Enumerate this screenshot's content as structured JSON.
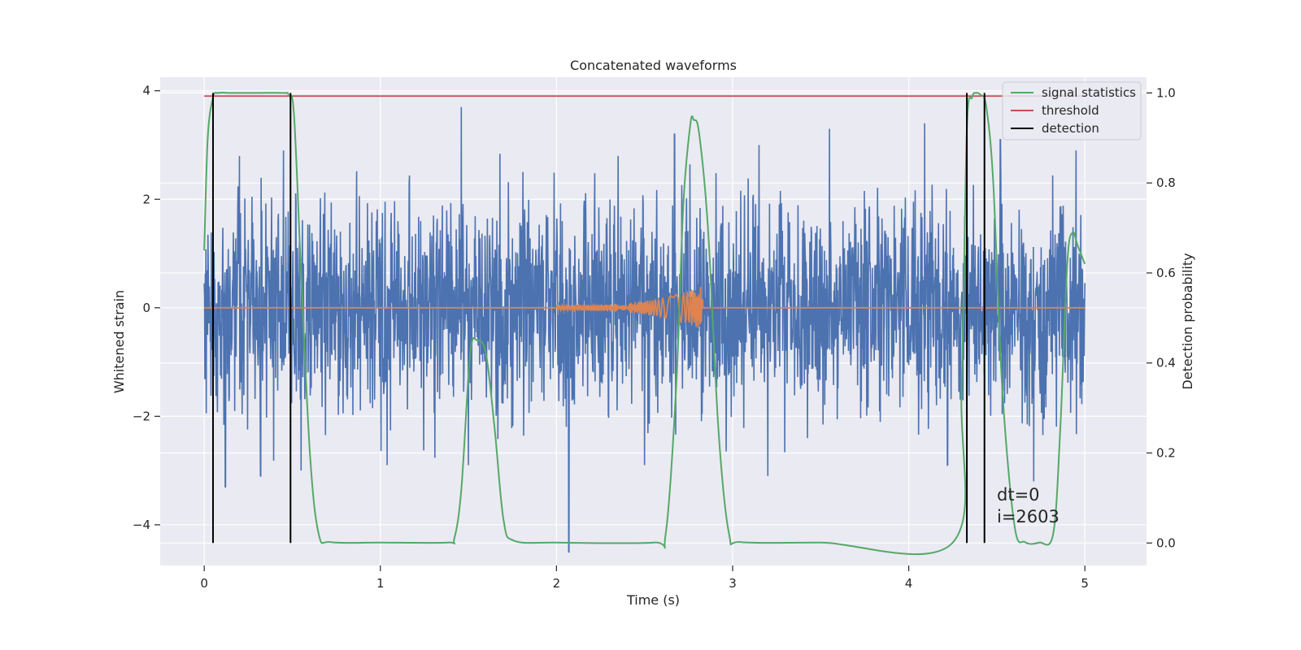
{
  "chart_data": {
    "type": "line",
    "title": "Concatenated waveforms",
    "xlabel": "Time (s)",
    "ylabel": "Whitened strain",
    "ylabel_right": "Detection probability",
    "xlim": [
      -0.25,
      5.35
    ],
    "ylim": [
      -4.75,
      4.25
    ],
    "ylim_right": [
      -0.05,
      1.035
    ],
    "x_ticks": [
      0,
      1,
      2,
      3,
      4,
      5
    ],
    "x_tick_labels": [
      "0",
      "1",
      "2",
      "3",
      "4",
      "5"
    ],
    "y_ticks": [
      -4,
      -2,
      0,
      2,
      4
    ],
    "y_tick_labels": [
      "−4",
      "−2",
      "0",
      "2",
      "4"
    ],
    "y_right_ticks": [
      0.0,
      0.2,
      0.4,
      0.6,
      0.8,
      1.0
    ],
    "y_right_tick_labels": [
      "0.0",
      "0.2",
      "0.4",
      "0.6",
      "0.8",
      "1.0"
    ],
    "grid": true,
    "legend_position": "top-right",
    "colors": {
      "background": "#eaeaf2",
      "grid": "#ffffff",
      "strain": "#4c72b0",
      "template": "#dd8452",
      "signal_statistics": "#55a868",
      "threshold": "#c44e52",
      "detection": "#000000"
    },
    "series": [
      {
        "key": "strain",
        "axis": "left",
        "style": "noise",
        "x_range": [
          0,
          5
        ],
        "typical_amplitude": 1.2,
        "peak_values": [
          [
            0.2,
            2.8
          ],
          [
            0.32,
            -3.1
          ],
          [
            0.45,
            2.9
          ],
          [
            1.46,
            3.7
          ],
          [
            2.07,
            -4.5
          ],
          [
            2.35,
            2.8
          ],
          [
            2.5,
            -2.9
          ],
          [
            2.67,
            3.2
          ],
          [
            3.15,
            3.0
          ],
          [
            3.55,
            3.3
          ],
          [
            4.09,
            3.4
          ],
          [
            4.52,
            3.1
          ],
          [
            4.95,
            2.9
          ],
          [
            0.12,
            -3.3
          ],
          [
            3.2,
            -3.1
          ],
          [
            4.22,
            -2.9
          ],
          [
            4.71,
            -3.2
          ],
          [
            0.55,
            -3.0
          ]
        ]
      },
      {
        "key": "template",
        "axis": "left",
        "style": "chirp",
        "start": 2.0,
        "end": 2.83,
        "amplitude_start": 0.05,
        "amplitude_end": 0.4
      },
      {
        "key": "signal_statistics",
        "name": "signal statistics",
        "axis": "right",
        "x": [
          0,
          0.02,
          0.05,
          0.08,
          0.15,
          0.3,
          0.45,
          0.48,
          0.51,
          0.55,
          0.6,
          0.65,
          0.72,
          1.0,
          1.38,
          1.42,
          1.46,
          1.51,
          1.55,
          1.6,
          1.65,
          1.7,
          1.76,
          2.0,
          2.55,
          2.62,
          2.68,
          2.72,
          2.76,
          2.78,
          2.81,
          2.86,
          2.92,
          2.98,
          3.05,
          3.5,
          4.25,
          4.3,
          4.33,
          4.36,
          4.38,
          4.41,
          4.44,
          4.48,
          4.53,
          4.6,
          4.66,
          4.74,
          4.82,
          4.86,
          4.9,
          4.93,
          4.96,
          5.0
        ],
        "y": [
          0.65,
          0.9,
          0.99,
          1.0,
          1.0,
          1.0,
          1.0,
          0.995,
          0.95,
          0.6,
          0.2,
          0.02,
          0.002,
          0.001,
          0.001,
          0.01,
          0.12,
          0.42,
          0.45,
          0.42,
          0.25,
          0.05,
          0.005,
          0.001,
          0.001,
          0.02,
          0.35,
          0.75,
          0.93,
          0.94,
          0.91,
          0.7,
          0.25,
          0.02,
          0.002,
          0.001,
          0.001,
          0.35,
          0.92,
          0.99,
          1.0,
          0.995,
          0.97,
          0.8,
          0.35,
          0.04,
          0.002,
          0.001,
          0.02,
          0.25,
          0.62,
          0.69,
          0.66,
          0.62
        ]
      },
      {
        "key": "threshold",
        "name": "threshold",
        "axis": "right",
        "x": [
          0,
          5
        ],
        "y": [
          0.993,
          0.993
        ]
      },
      {
        "key": "detection",
        "name": "detection",
        "axis": "right",
        "style": "vlines",
        "x": [
          0.05,
          0.49,
          4.33,
          4.43
        ],
        "y_range": [
          0.0,
          1.0
        ]
      }
    ],
    "annotations": [
      "dt=0",
      "i=2603"
    ]
  }
}
